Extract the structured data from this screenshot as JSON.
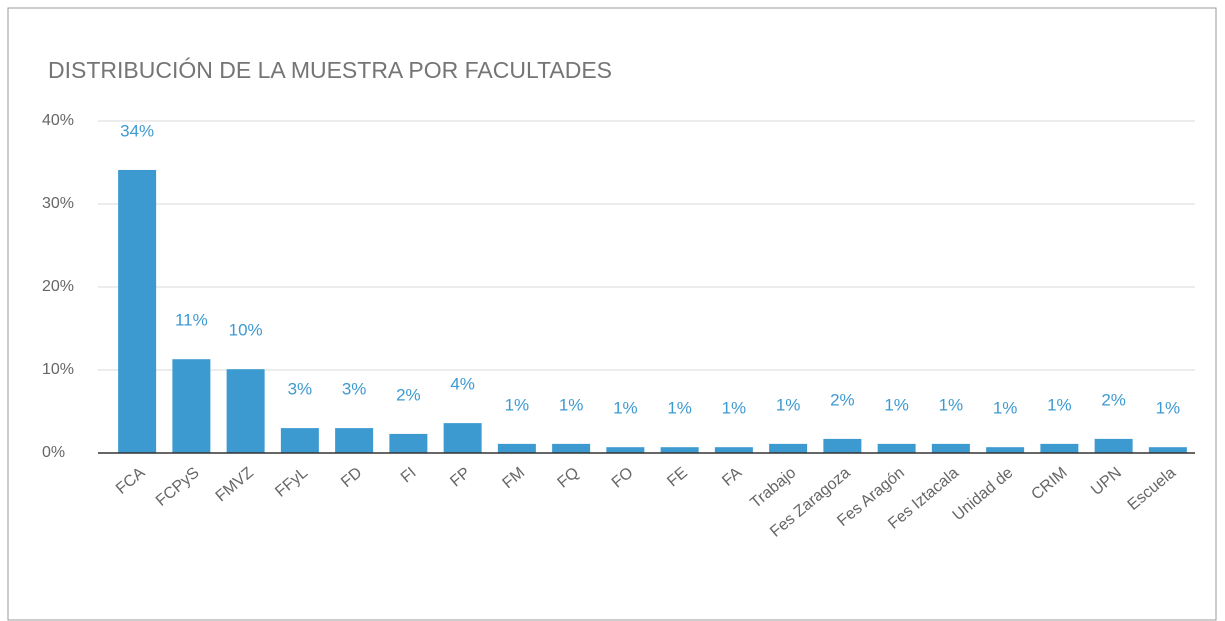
{
  "chart_data": {
    "type": "bar",
    "title": "DISTRIBUCIÓN DE LA MUESTRA POR FACULTADES",
    "categories": [
      "FCA",
      "FCPyS",
      "FMVZ",
      "FFyL",
      "FD",
      "FI",
      "FP",
      "FM",
      "FQ",
      "FO",
      "FE",
      "FA",
      "Trabajo",
      "Fes Zaragoza",
      "Fes Aragón",
      "Fes Iztacala",
      "Unidad de",
      "CRIM",
      "UPN",
      "Escuela"
    ],
    "values": [
      34.1,
      11.3,
      10.1,
      3.0,
      3.0,
      2.3,
      3.6,
      1.1,
      1.1,
      0.7,
      0.7,
      0.7,
      1.1,
      1.7,
      1.1,
      1.1,
      0.7,
      1.1,
      1.7,
      0.7
    ],
    "value_labels": [
      "34%",
      "11%",
      "10%",
      "3%",
      "3%",
      "2%",
      "4%",
      "1%",
      "1%",
      "1%",
      "1%",
      "1%",
      "1%",
      "2%",
      "1%",
      "1%",
      "1%",
      "1%",
      "2%",
      "1%"
    ],
    "color": "#3d9ad1",
    "ylim": [
      0,
      40
    ],
    "yticks": [
      {
        "value": 0,
        "label": "0%"
      },
      {
        "value": 10,
        "label": "10%"
      },
      {
        "value": 20,
        "label": "20%"
      },
      {
        "value": 30,
        "label": "30%"
      },
      {
        "value": 40,
        "label": "40%"
      }
    ],
    "grid": true
  }
}
